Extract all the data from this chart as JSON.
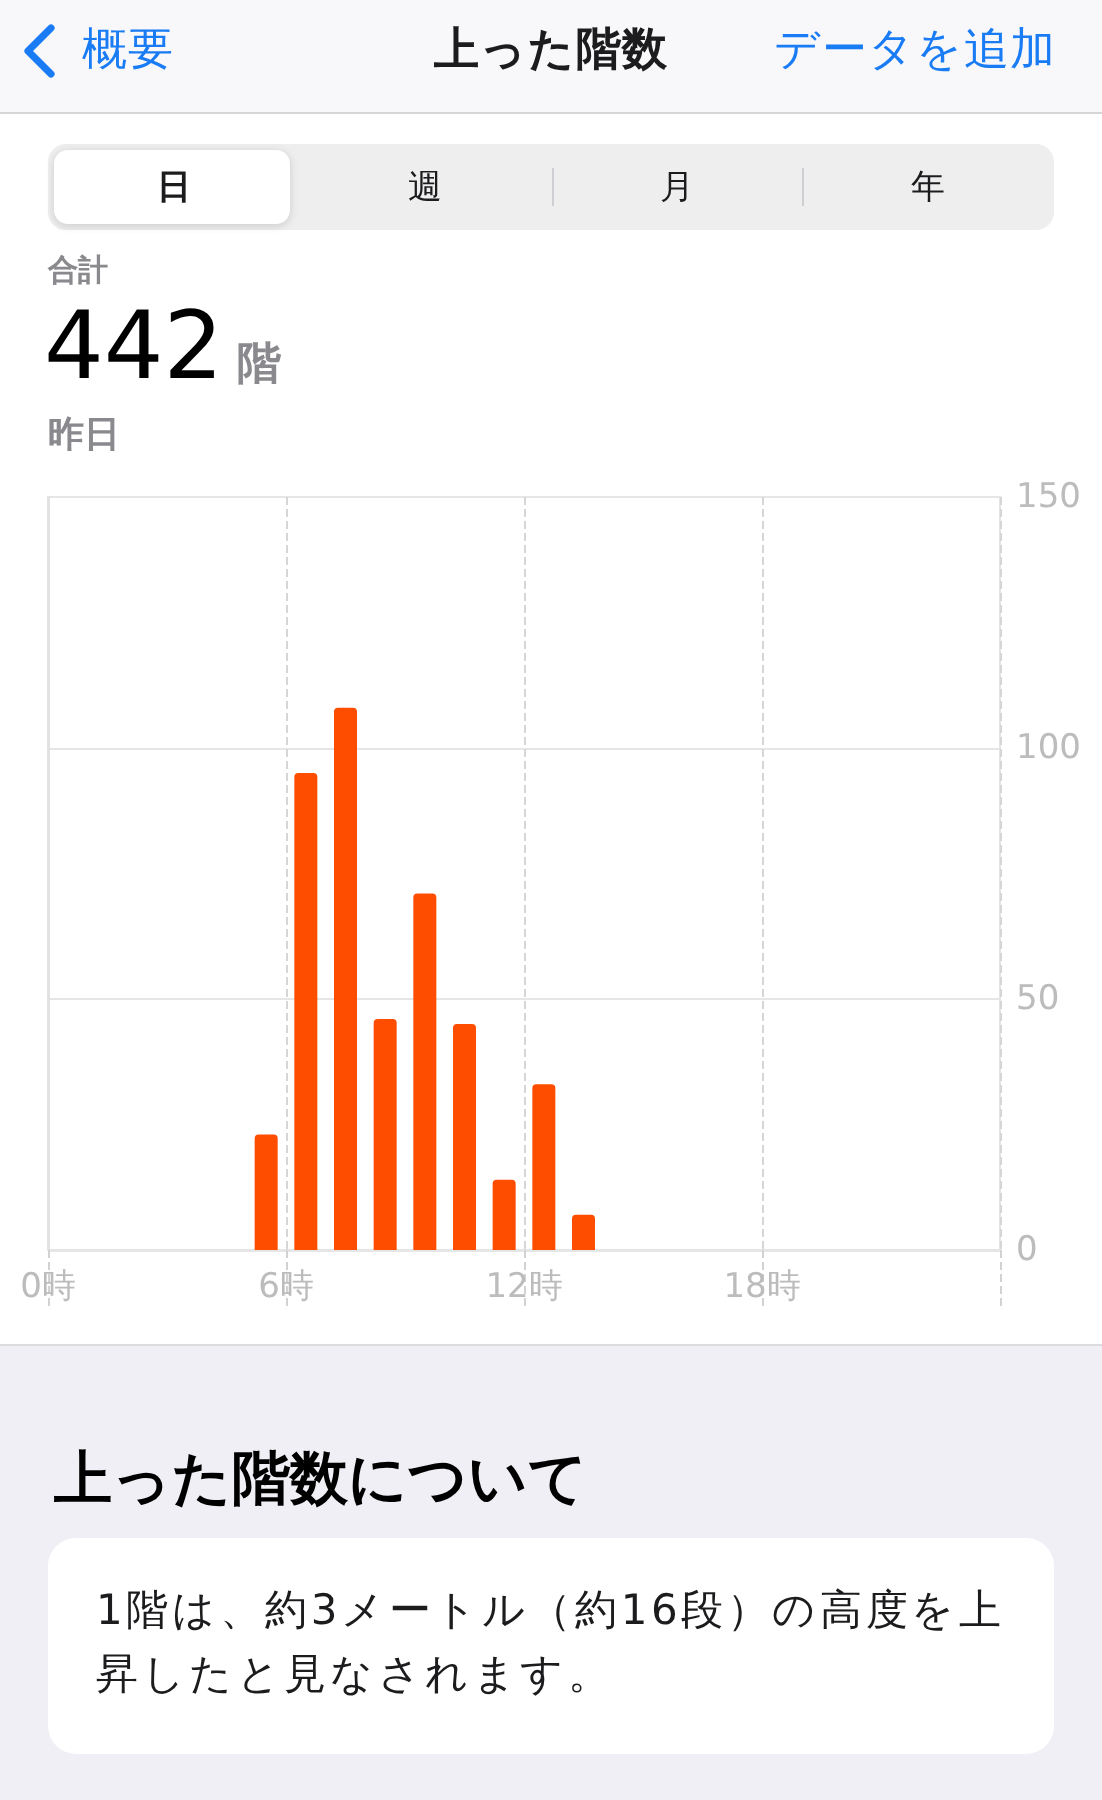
{
  "chart_data": {
    "type": "bar",
    "title": "上った階数",
    "annotations": [
      "概要",
      "データを追加",
      "日",
      "週",
      "月",
      "年",
      "合計",
      "442",
      "階",
      "昨日",
      "上った階数について",
      "1階は、約3メートル（約16段）の高度を上昇したと見なされます。"
    ],
    "x": [
      5.5,
      6.5,
      7.5,
      8.5,
      9.5,
      10.5,
      11.5,
      12.5,
      13.5
    ],
    "values": [
      23,
      95,
      108,
      46,
      71,
      45,
      14,
      33,
      7
    ],
    "color": "#ff4d00",
    "xlim": [
      0,
      24
    ],
    "xticks": [
      {
        "value": 0,
        "label": "0時"
      },
      {
        "value": 6,
        "label": "6時"
      },
      {
        "value": 12,
        "label": "12時"
      },
      {
        "value": 18,
        "label": "18時"
      },
      {
        "value": 24,
        "label": null
      }
    ],
    "ylim": [
      0,
      150
    ],
    "yticks": [
      0,
      50,
      100,
      150
    ],
    "grid": true
  }
}
